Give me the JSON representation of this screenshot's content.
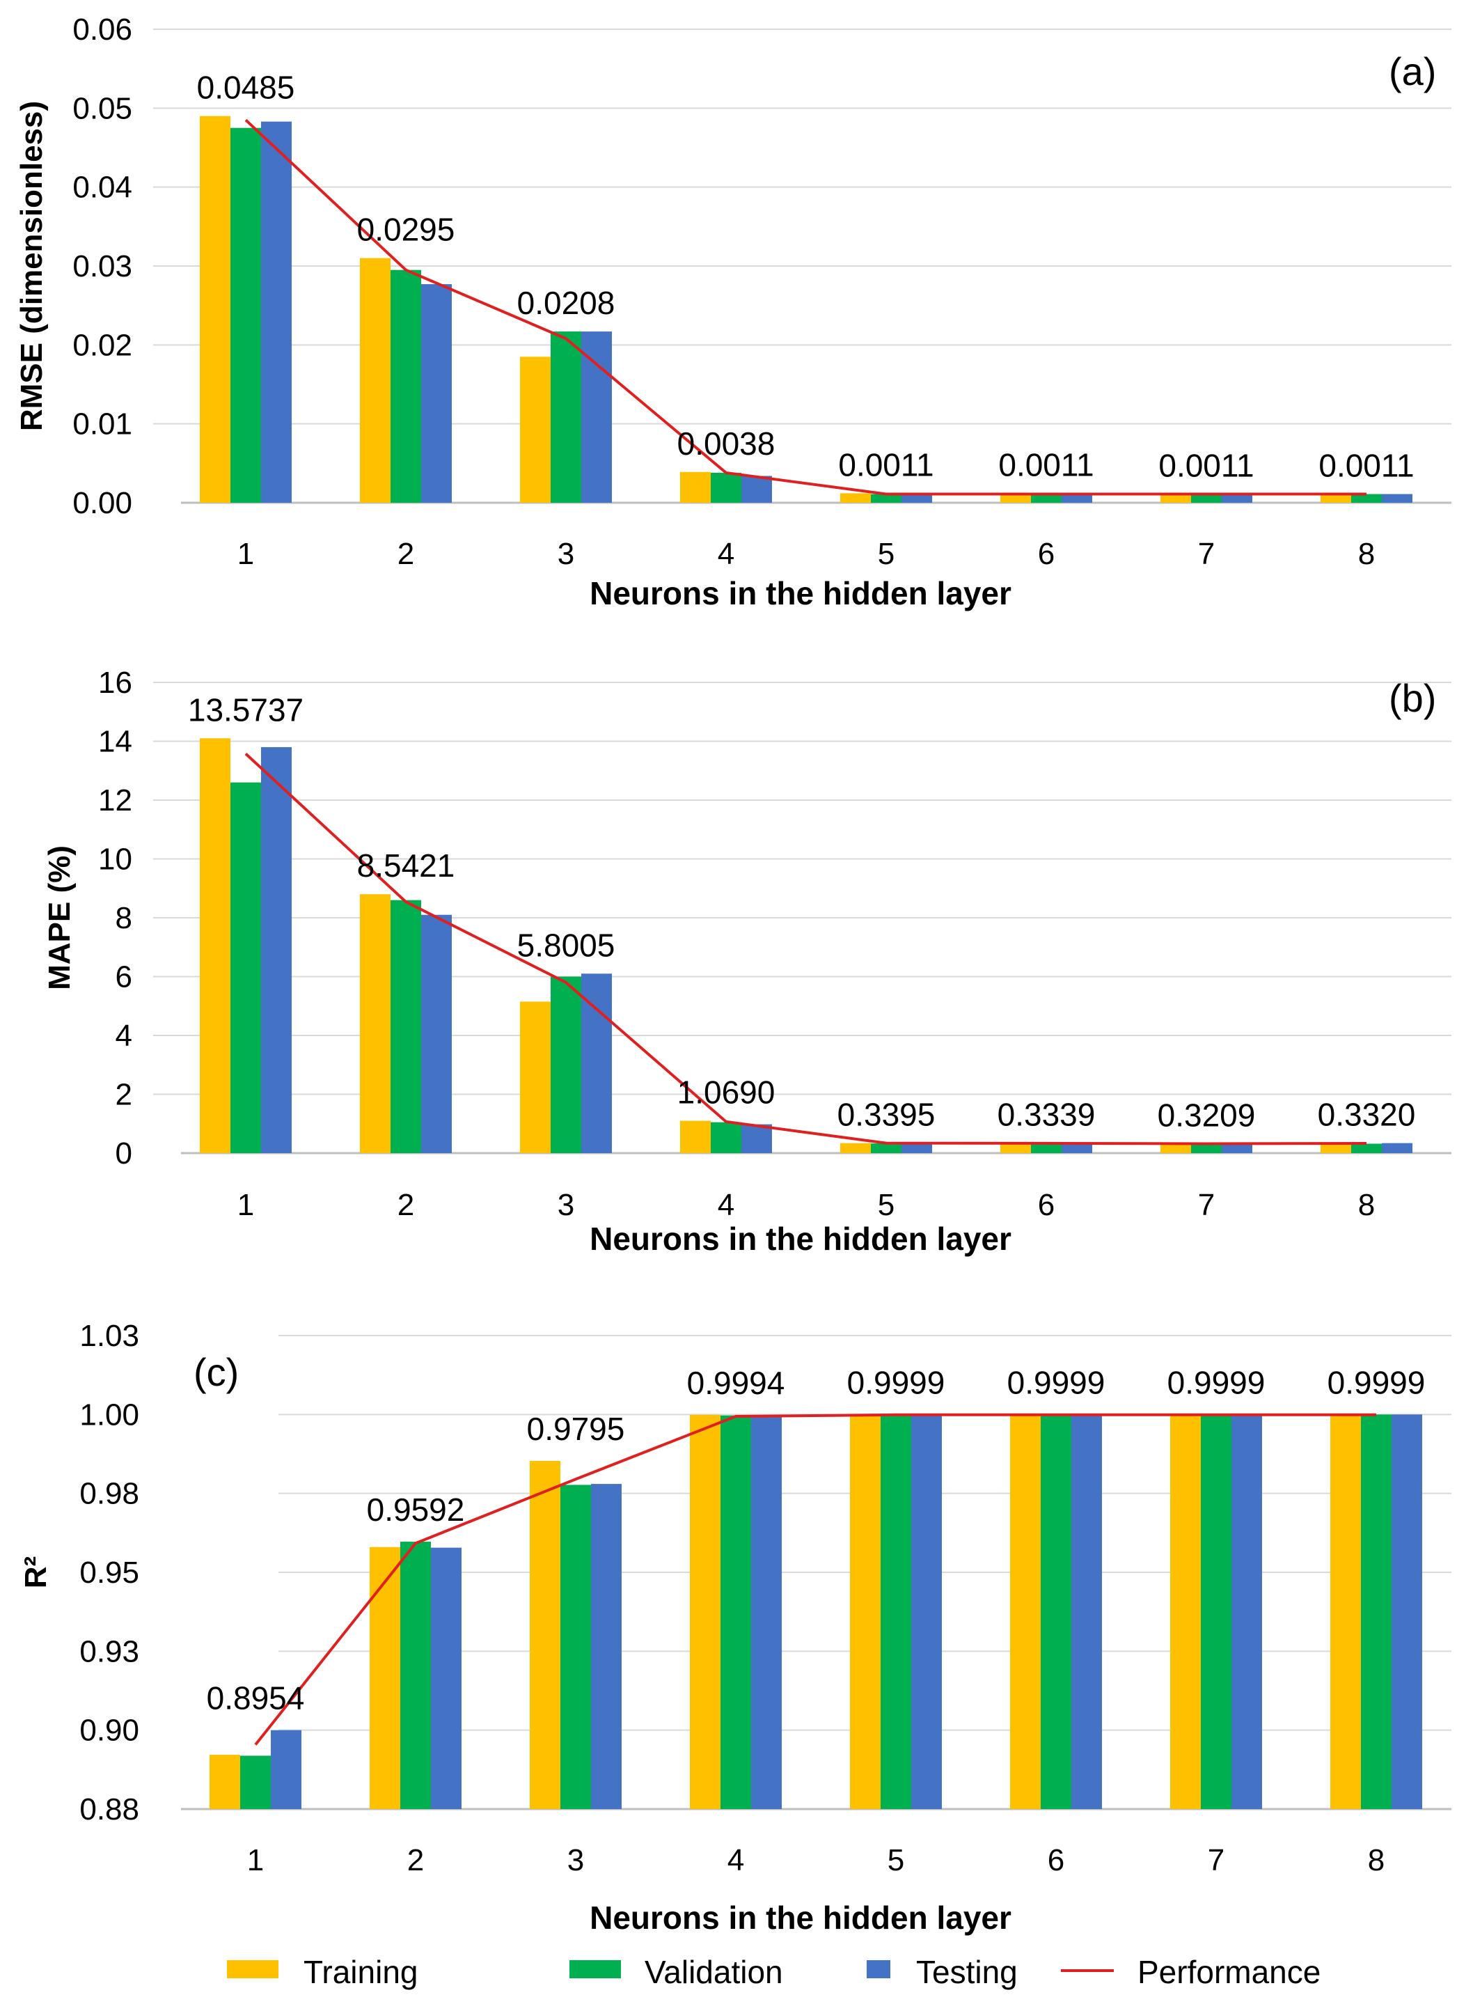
{
  "colors": {
    "training": "#FFC000",
    "validation": "#00B050",
    "testing": "#4472C4",
    "performance": "#E02020"
  },
  "legend": {
    "training": "Training",
    "validation": "Validation",
    "testing": "Testing",
    "performance": "Performance"
  },
  "chart_data": [
    {
      "type": "bar",
      "panel_label": "(a)",
      "title": "",
      "xlabel": "Neurons in the hidden layer",
      "ylabel": "RMSE (dimensionless)",
      "categories": [
        "1",
        "2",
        "3",
        "4",
        "5",
        "6",
        "7",
        "8"
      ],
      "ylim": [
        0,
        0.06
      ],
      "yticks": [
        0,
        0.01,
        0.02,
        0.03,
        0.04,
        0.05,
        0.06
      ],
      "ytick_labels": [
        "0.00",
        "0.01",
        "0.02",
        "0.03",
        "0.04",
        "0.05",
        "0.06"
      ],
      "series": [
        {
          "name": "Training",
          "values": [
            0.049,
            0.031,
            0.0185,
            0.0039,
            0.0012,
            0.0012,
            0.0011,
            0.0011
          ]
        },
        {
          "name": "Validation",
          "values": [
            0.0475,
            0.0295,
            0.0217,
            0.0038,
            0.0011,
            0.0011,
            0.0011,
            0.0011
          ]
        },
        {
          "name": "Testing",
          "values": [
            0.0483,
            0.0277,
            0.0217,
            0.0034,
            0.0011,
            0.0011,
            0.001,
            0.0011
          ]
        }
      ],
      "line": {
        "name": "Performance",
        "values": [
          0.0485,
          0.0295,
          0.0208,
          0.0038,
          0.0011,
          0.0011,
          0.0011,
          0.0011
        ]
      },
      "data_labels": [
        "0.0485",
        "0.0295",
        "0.0208",
        "0.0038",
        "0.0011",
        "0.0011",
        "0.0011",
        "0.0011"
      ]
    },
    {
      "type": "bar",
      "panel_label": "(b)",
      "title": "",
      "xlabel": "Neurons in the hidden layer",
      "ylabel": "MAPE (%)",
      "categories": [
        "1",
        "2",
        "3",
        "4",
        "5",
        "6",
        "7",
        "8"
      ],
      "ylim": [
        0,
        16
      ],
      "yticks": [
        0,
        2,
        4,
        6,
        8,
        10,
        12,
        14,
        16
      ],
      "ytick_labels": [
        "0",
        "2",
        "4",
        "6",
        "8",
        "10",
        "12",
        "14",
        "16"
      ],
      "series": [
        {
          "name": "Training",
          "values": [
            14.1,
            8.8,
            5.15,
            1.1,
            0.34,
            0.34,
            0.32,
            0.33
          ]
        },
        {
          "name": "Validation",
          "values": [
            12.6,
            8.6,
            6.0,
            1.05,
            0.33,
            0.33,
            0.32,
            0.32
          ]
        },
        {
          "name": "Testing",
          "values": [
            13.8,
            8.1,
            6.1,
            0.98,
            0.34,
            0.33,
            0.32,
            0.34
          ]
        }
      ],
      "line": {
        "name": "Performance",
        "values": [
          13.5737,
          8.5421,
          5.8005,
          1.069,
          0.3395,
          0.3339,
          0.3209,
          0.332
        ]
      },
      "data_labels": [
        "13.5737",
        "8.5421",
        "5.8005",
        "1.0690",
        "0.3395",
        "0.3339",
        "0.3209",
        "0.3320"
      ]
    },
    {
      "type": "bar",
      "panel_label": "(c)",
      "title": "",
      "xlabel": "Neurons in the hidden layer",
      "ylabel": "R²",
      "categories": [
        "1",
        "2",
        "3",
        "4",
        "5",
        "6",
        "7",
        "8"
      ],
      "ylim": [
        0.875,
        1.025
      ],
      "yticks": [
        0.875,
        0.9,
        0.925,
        0.95,
        0.975,
        1.0,
        1.025
      ],
      "ytick_labels": [
        "0.88",
        "0.90",
        "0.93",
        "0.95",
        "0.98",
        "1.00",
        "1.03"
      ],
      "series": [
        {
          "name": "Training",
          "values": [
            0.8922,
            0.958,
            0.9853,
            0.9999,
            1.0,
            1.0,
            1.0,
            1.0
          ]
        },
        {
          "name": "Validation",
          "values": [
            0.8919,
            0.9597,
            0.9777,
            0.9997,
            1.0,
            1.0,
            1.0,
            1.0
          ]
        },
        {
          "name": "Testing",
          "values": [
            0.9,
            0.9578,
            0.978,
            0.9996,
            1.0,
            1.0,
            1.0,
            1.0
          ]
        }
      ],
      "line": {
        "name": "Performance",
        "values": [
          0.8954,
          0.9592,
          0.9795,
          0.9994,
          0.9999,
          0.9999,
          0.9999,
          0.9999
        ]
      },
      "data_labels": [
        "0.8954",
        "0.9592",
        "0.9795",
        "0.9994",
        "0.9999",
        "0.9999",
        "0.9999",
        "0.9999"
      ]
    }
  ]
}
